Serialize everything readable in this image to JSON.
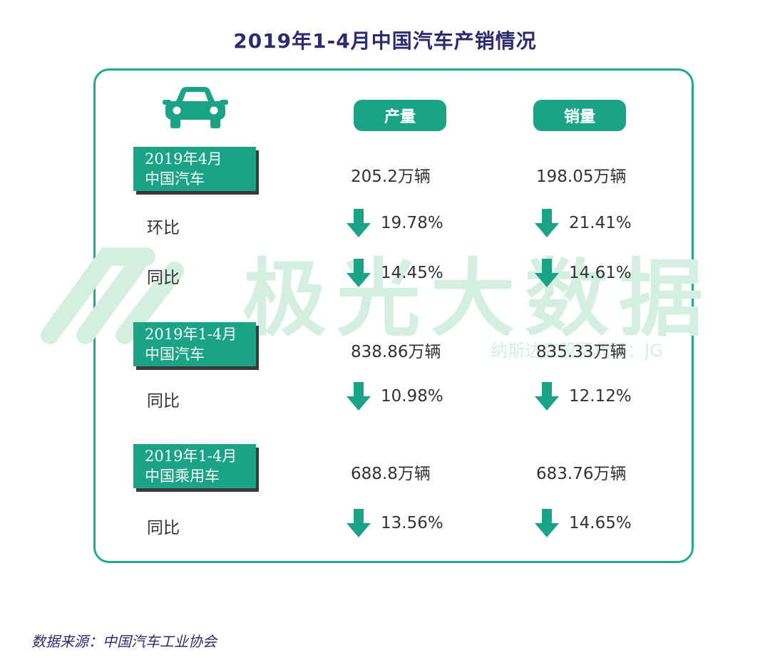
{
  "title": "2019年1-4月中国汽车产销情况",
  "colors": {
    "accent": "#1aa386",
    "title": "#2e2a6e",
    "border": "#20a98a",
    "watermark": "#cdeedd"
  },
  "watermark": {
    "brand": "极光大数据",
    "sub": "纳斯达克股票代码：JG"
  },
  "chart_data": {
    "type": "table",
    "title": "2019年1-4月中国汽车产销情况",
    "columns": [
      "产量",
      "销量"
    ],
    "groups": [
      {
        "label_line1": "2019年4月",
        "label_line2": "中国汽车",
        "production": "205.2万辆",
        "sales": "198.05万辆",
        "changes": [
          {
            "label": "环比",
            "direction": "down",
            "production": "19.78%",
            "sales": "21.41%"
          },
          {
            "label": "同比",
            "direction": "down",
            "production": "14.45%",
            "sales": "14.61%"
          }
        ]
      },
      {
        "label_line1": "2019年1-4月",
        "label_line2": "中国汽车",
        "production": "838.86万辆",
        "sales": "835.33万辆",
        "changes": [
          {
            "label": "同比",
            "direction": "down",
            "production": "10.98%",
            "sales": "12.12%"
          }
        ]
      },
      {
        "label_line1": "2019年1-4月",
        "label_line2": "中国乘用车",
        "production": "688.8万辆",
        "sales": "683.76万辆",
        "changes": [
          {
            "label": "同比",
            "direction": "down",
            "production": "13.56%",
            "sales": "14.65%"
          }
        ]
      }
    ]
  },
  "source": "数据来源：中国汽车工业协会"
}
